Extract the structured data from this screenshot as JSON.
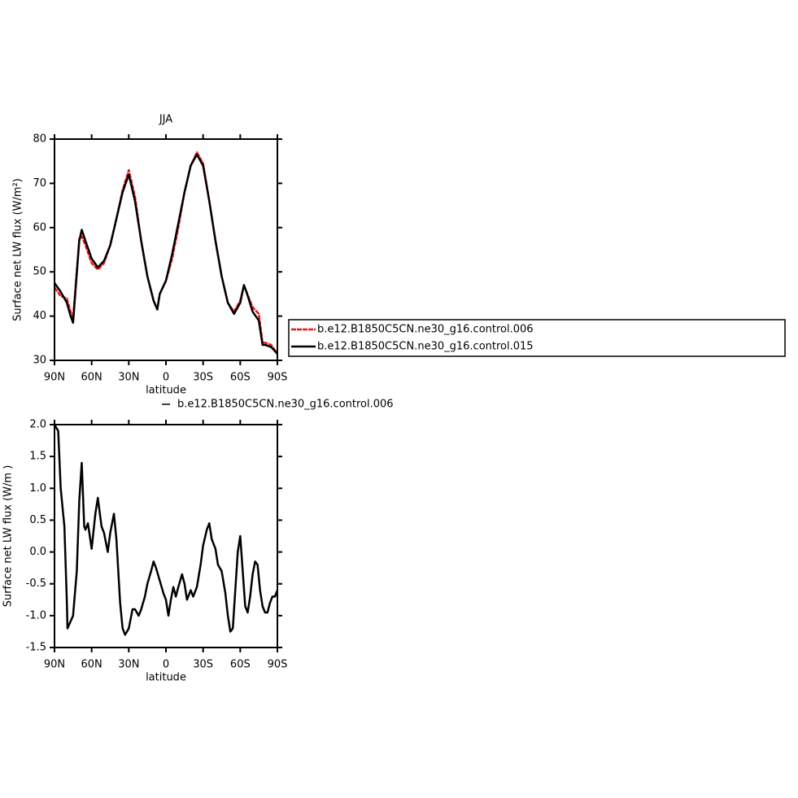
{
  "chart_data": [
    {
      "type": "line",
      "title": "JJA",
      "xlabel": "latitude",
      "ylabel": "Surface net LW flux (W/m²)",
      "x": [
        90,
        85,
        80,
        77,
        75,
        70,
        68,
        65,
        60,
        55,
        50,
        45,
        40,
        35,
        30,
        25,
        20,
        15,
        10,
        7,
        5,
        0,
        -5,
        -10,
        -15,
        -20,
        -25,
        -30,
        -35,
        -40,
        -45,
        -50,
        -55,
        -60,
        -63,
        -65,
        -70,
        -75,
        -78,
        -80,
        -85,
        -90
      ],
      "series": [
        {
          "name": "b.e12.B1850C5CN.ne30_g16.control.006",
          "color": "#e8191c",
          "dash": true,
          "values": [
            46.5,
            44.5,
            44,
            41,
            39.5,
            57.5,
            58,
            56,
            52,
            50.5,
            52,
            56,
            62,
            68.5,
            73,
            67,
            57,
            49,
            43.5,
            41.5,
            45,
            48,
            53,
            60,
            68,
            74,
            77,
            74.5,
            66,
            57,
            49,
            43,
            41,
            43.5,
            47,
            45.5,
            42,
            40.5,
            34,
            34,
            33.5,
            31.5
          ]
        },
        {
          "name": "b.e12.B1850C5CN.ne30_g16.control.015",
          "color": "#000000",
          "values": [
            47.5,
            45.5,
            43,
            40,
            38.5,
            57,
            59.5,
            57,
            53,
            51,
            52.5,
            56,
            62,
            68,
            72,
            66,
            57,
            49,
            43.5,
            41.5,
            45,
            48,
            54,
            61,
            68,
            74,
            76.5,
            74,
            66,
            57,
            49,
            43,
            40.5,
            43,
            47,
            45.5,
            41,
            39,
            33.5,
            33.5,
            33,
            31.5
          ]
        }
      ],
      "xlim": [
        90,
        -90
      ],
      "xticks": [
        {
          "value": 90,
          "label": "90N"
        },
        {
          "value": 60,
          "label": "60N"
        },
        {
          "value": 30,
          "label": "30N"
        },
        0,
        {
          "value": -30,
          "label": "30S"
        },
        {
          "value": -60,
          "label": "60S"
        },
        {
          "value": -90,
          "label": "90S"
        }
      ],
      "ylim": [
        30,
        80
      ],
      "yticks": [
        30,
        40,
        50,
        60,
        70,
        80
      ],
      "legend": "right"
    },
    {
      "type": "line",
      "xlabel": "latitude",
      "ylabel": "Surface net LW flux (W/m )",
      "x": [
        90,
        87,
        85,
        82,
        80,
        79.5,
        75,
        72,
        70,
        68,
        66,
        65,
        63,
        60,
        57,
        55,
        52,
        50,
        47,
        45,
        42,
        40,
        37,
        35,
        33,
        30,
        27,
        25,
        22,
        20,
        17,
        15,
        12,
        10,
        8,
        5,
        2,
        0,
        -2,
        -4,
        -6,
        -8,
        -10,
        -13,
        -15,
        -17,
        -20,
        -22,
        -25,
        -28,
        -30,
        -33,
        -35,
        -37,
        -40,
        -42,
        -45,
        -48,
        -50,
        -52,
        -54,
        -56,
        -58,
        -60,
        -62,
        -64,
        -66,
        -68,
        -70,
        -72,
        -74,
        -76,
        -78,
        -80,
        -82,
        -84,
        -86,
        -88,
        -90
      ],
      "series": [
        {
          "name": "b.e12.B1850C5CN.ne30_g16.control.006",
          "color": "#000000",
          "values": [
            2.0,
            1.9,
            1.0,
            0.4,
            -0.8,
            -1.2,
            -1.0,
            -0.3,
            0.8,
            1.4,
            0.4,
            0.35,
            0.45,
            0.05,
            0.6,
            0.85,
            0.4,
            0.3,
            0.0,
            0.3,
            0.6,
            0.2,
            -0.8,
            -1.2,
            -1.3,
            -1.2,
            -0.9,
            -0.9,
            -1.0,
            -0.9,
            -0.7,
            -0.5,
            -0.3,
            -0.15,
            -0.25,
            -0.45,
            -0.65,
            -0.75,
            -1.0,
            -0.75,
            -0.55,
            -0.7,
            -0.55,
            -0.35,
            -0.5,
            -0.75,
            -0.6,
            -0.7,
            -0.55,
            -0.2,
            0.1,
            0.35,
            0.45,
            0.2,
            0.05,
            -0.2,
            -0.3,
            -0.65,
            -1.0,
            -1.25,
            -1.2,
            -0.6,
            0.0,
            0.25,
            -0.3,
            -0.85,
            -0.95,
            -0.7,
            -0.35,
            -0.15,
            -0.2,
            -0.6,
            -0.85,
            -0.95,
            -0.95,
            -0.8,
            -0.7,
            -0.7,
            -0.6
          ]
        }
      ],
      "xlim": [
        90,
        -90
      ],
      "xticks": [
        {
          "value": 90,
          "label": "90N"
        },
        {
          "value": 60,
          "label": "60N"
        },
        {
          "value": 30,
          "label": "30N"
        },
        0,
        {
          "value": -30,
          "label": "30S"
        },
        {
          "value": -60,
          "label": "60S"
        },
        {
          "value": -90,
          "label": "90S"
        }
      ],
      "ylim": [
        -1.5,
        2.0
      ],
      "yticks": [
        -1.5,
        {
          "value": -1,
          "label": "-1.0"
        },
        -0.5,
        {
          "value": 0,
          "label": "0.0"
        },
        0.5,
        {
          "value": 1,
          "label": "1.0"
        },
        1.5,
        {
          "value": 2,
          "label": "2.0"
        }
      ],
      "legend": "top"
    }
  ]
}
